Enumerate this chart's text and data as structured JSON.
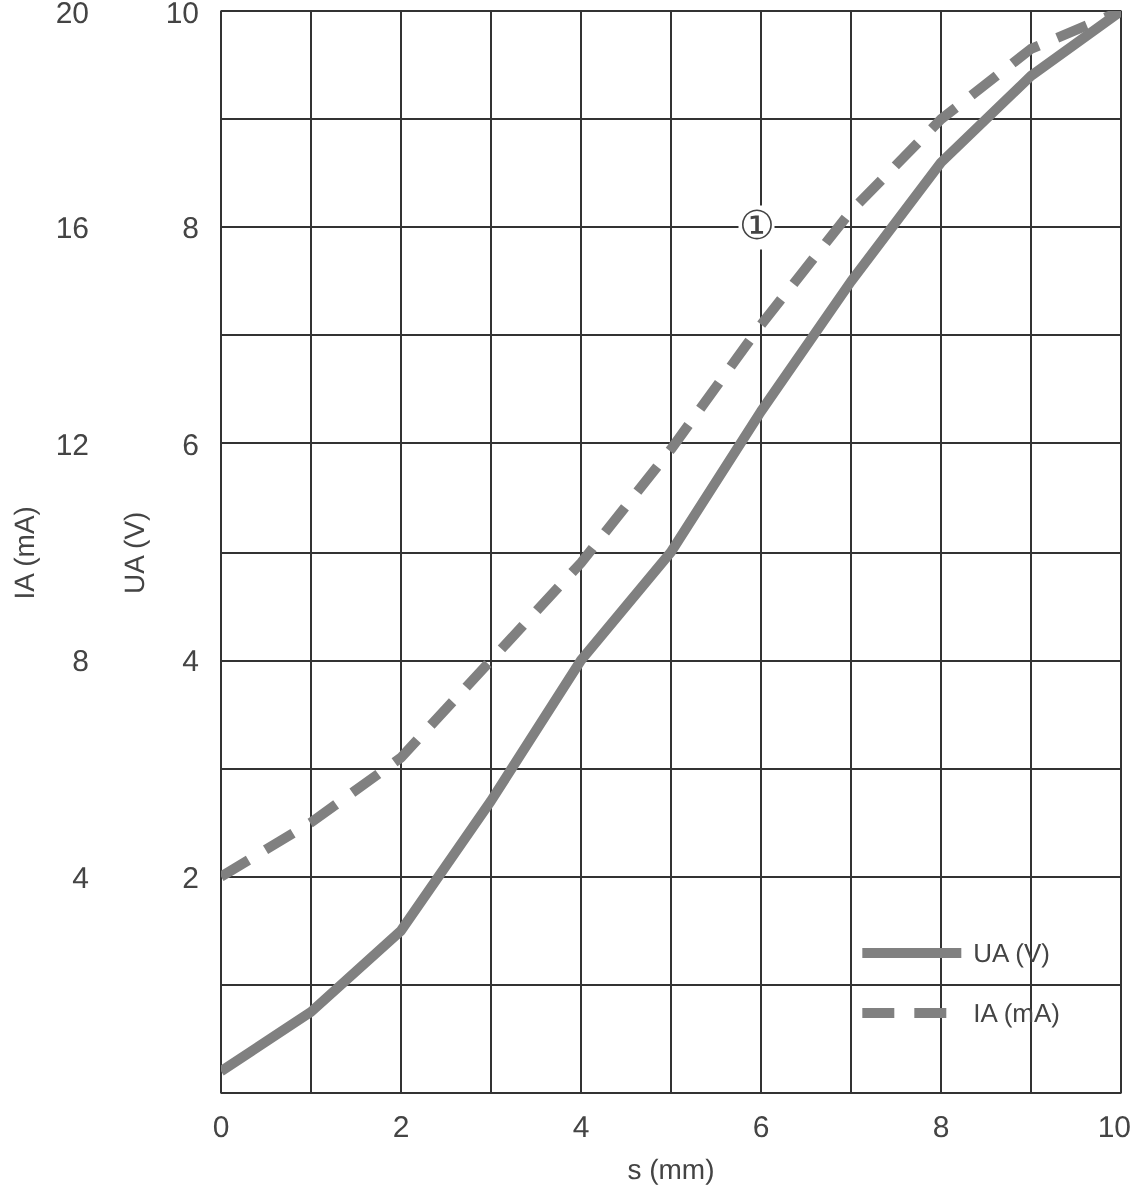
{
  "chart_data": {
    "type": "line",
    "xlabel": "s (mm)",
    "ylabel": "UA (V)",
    "y2label": "IA (mA)",
    "x": [
      0,
      1,
      2,
      3,
      4,
      5,
      6,
      7,
      8,
      9,
      10
    ],
    "series": [
      {
        "name": "UA (V)",
        "color": "#808080",
        "line_style": "solid",
        "values": [
          0.2,
          0.75,
          1.5,
          2.7,
          4.0,
          5.0,
          6.3,
          7.5,
          8.6,
          9.4,
          10
        ]
      },
      {
        "name": "IA (mA)",
        "color": "#808080",
        "line_style": "dashed",
        "axis": "y2",
        "values": [
          4,
          5.0,
          6.2,
          8,
          9.8,
          11.9,
          14.2,
          16.3,
          18,
          19.3,
          20
        ]
      }
    ],
    "xlim": [
      0,
      10
    ],
    "xticks": [
      0,
      {
        "value": 1,
        "label": null
      },
      2,
      {
        "value": 3,
        "label": null
      },
      4,
      {
        "value": 5,
        "label": null
      },
      6,
      {
        "value": 7,
        "label": null
      },
      8,
      {
        "value": 9,
        "label": null
      },
      10
    ],
    "ylim": [
      0,
      10
    ],
    "yticks": [
      {
        "value": 0,
        "label": null
      },
      {
        "value": 1,
        "label": null
      },
      2,
      {
        "value": 3,
        "label": null
      },
      4,
      {
        "value": 5,
        "label": null
      },
      6,
      {
        "value": 7,
        "label": null
      },
      8,
      {
        "value": 9,
        "label": null
      },
      10
    ],
    "y2lim": [
      0,
      20
    ],
    "y2ticks": [
      4,
      8,
      12,
      16,
      20
    ],
    "annotations": [
      {
        "text": "①",
        "x": 5.95,
        "y": 8
      }
    ],
    "grid": true,
    "legend": "bottom right",
    "marker": "none"
  }
}
